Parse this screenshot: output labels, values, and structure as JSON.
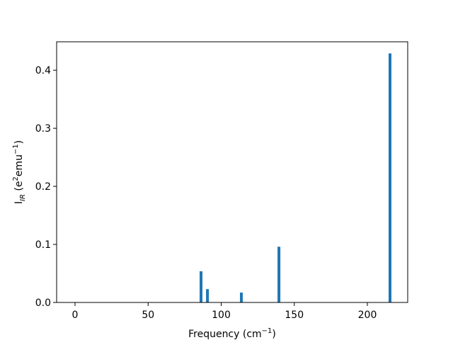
{
  "chart_data": {
    "type": "bar",
    "x": [
      86.2,
      90.6,
      113.8,
      139.5,
      215.5
    ],
    "values": [
      0.0537,
      0.023,
      0.017,
      0.096,
      0.429
    ],
    "color": "#1f77b4",
    "xlim": [
      -12.6,
      227.6
    ],
    "xticks": [
      0,
      50,
      100,
      150,
      200
    ],
    "ylim": [
      0,
      0.449
    ],
    "yticks": [
      {
        "value": 0,
        "label": "0.0"
      },
      0.1,
      0.2,
      0.3,
      0.4
    ],
    "xlabel": [
      "Frequency (cm",
      "−1",
      ")"
    ],
    "ylabel": [
      "I",
      "IR",
      " (e",
      "2",
      "emu",
      "−1",
      ")"
    ],
    "grid": false
  }
}
